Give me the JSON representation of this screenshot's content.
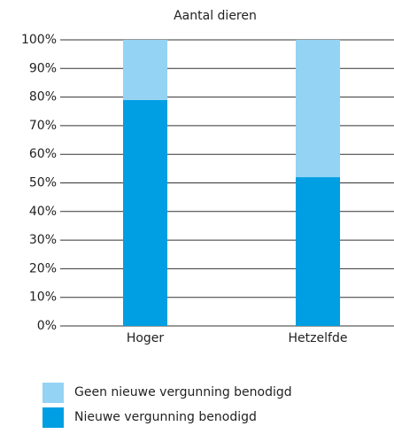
{
  "chart_data": {
    "type": "bar",
    "stacked": true,
    "title": "Aantal dieren",
    "categories": [
      "Hoger",
      "Hetzelfde"
    ],
    "series": [
      {
        "name": "Geen nieuwe vergunning benodigd",
        "color": "#94d3f4",
        "values": [
          21,
          48
        ]
      },
      {
        "name": "Nieuwe vergunning benodigd",
        "color": "#009fe3",
        "values": [
          79,
          52
        ]
      }
    ],
    "ylim": [
      0,
      100
    ],
    "yticks": [
      {
        "value": 0,
        "label": "0%"
      },
      {
        "value": 10,
        "label": "10%"
      },
      {
        "value": 20,
        "label": "20%"
      },
      {
        "value": 30,
        "label": "30%"
      },
      {
        "value": 40,
        "label": "40%"
      },
      {
        "value": 50,
        "label": "50%"
      },
      {
        "value": 60,
        "label": "60%"
      },
      {
        "value": 70,
        "label": "70%"
      },
      {
        "value": 80,
        "label": "80%"
      },
      {
        "value": 90,
        "label": "90%"
      },
      {
        "value": 100,
        "label": "100%"
      }
    ],
    "grid": true
  }
}
